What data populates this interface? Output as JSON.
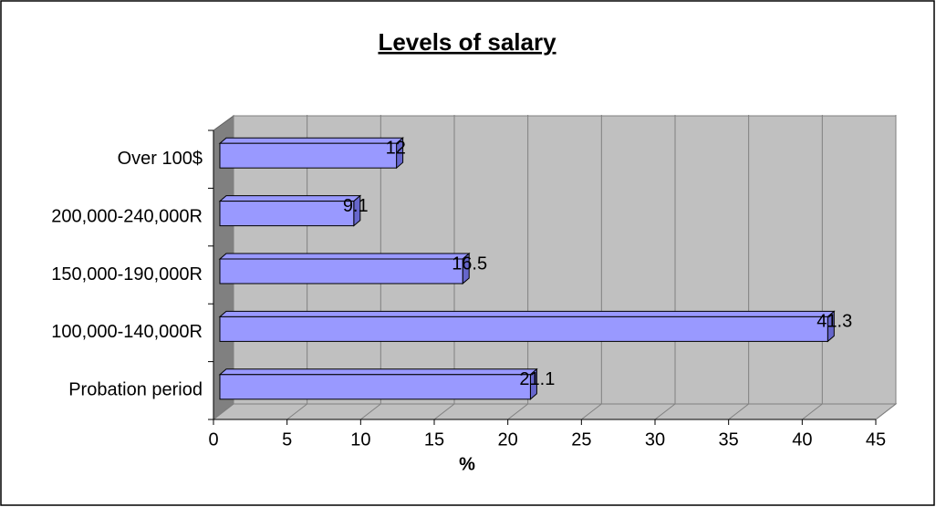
{
  "chart_data": {
    "type": "bar",
    "orientation": "horizontal",
    "title": "Levels of salary",
    "xlabel": "%",
    "categories": [
      "Probation period",
      "100,000-140,000R",
      "150,000-190,000R",
      "200,000-240,000R",
      "Over 100$"
    ],
    "values": [
      21.1,
      41.3,
      16.5,
      9.1,
      12
    ],
    "color": "#9999ff",
    "xlim": [
      0,
      45
    ],
    "xticks": [
      0,
      5,
      10,
      15,
      20,
      25,
      30,
      35,
      40,
      45
    ],
    "grid": true,
    "data_labels": true
  }
}
